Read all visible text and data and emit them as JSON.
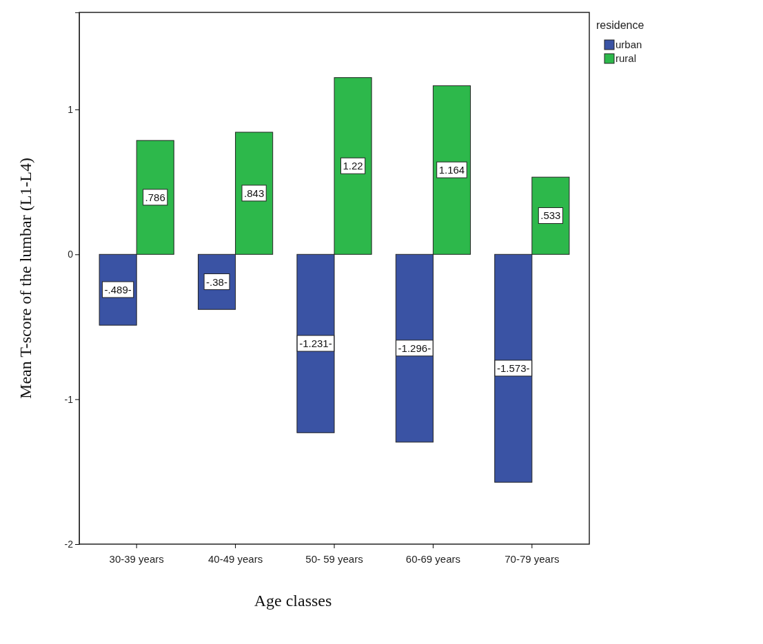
{
  "chart_data": {
    "type": "bar",
    "xlabel": "Age classes",
    "ylabel": "Mean T-score of the lumbar (L1-L4)",
    "legend_title": "residence",
    "categories": [
      "30-39 years",
      "40-49 years",
      "50- 59 years",
      "60-69 years",
      "70-79 years"
    ],
    "series": [
      {
        "name": "urban",
        "color": "#3a53a4",
        "values": [
          -0.489,
          -0.38,
          -1.231,
          -1.296,
          -1.573
        ],
        "value_labels": [
          "-.489-",
          "-.38-",
          "-1.231-",
          "-1.296-",
          "-1.573-"
        ]
      },
      {
        "name": "rural",
        "color": "#2db84b",
        "values": [
          0.786,
          0.843,
          1.22,
          1.164,
          0.533
        ],
        "value_labels": [
          ".786",
          ".843",
          "1.22",
          "1.164",
          ".533"
        ]
      }
    ],
    "ylim": [
      -2,
      1.67
    ],
    "yticks": [
      -2,
      -1,
      0,
      1
    ],
    "grid": false,
    "legend": "top right"
  }
}
